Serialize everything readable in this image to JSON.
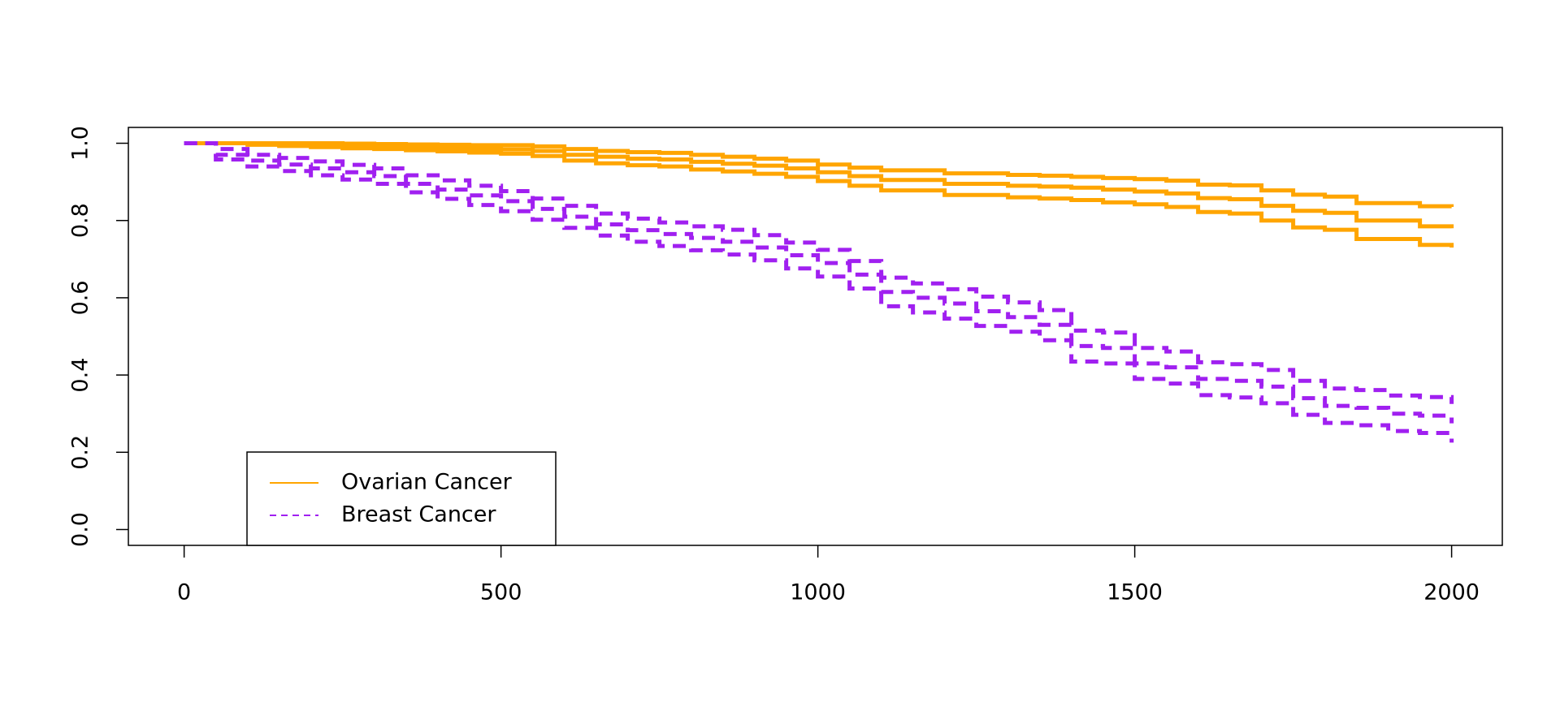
{
  "chart_data": {
    "type": "step",
    "x": [
      0,
      50,
      100,
      150,
      200,
      250,
      300,
      350,
      400,
      450,
      500,
      550,
      600,
      650,
      700,
      750,
      800,
      850,
      900,
      950,
      1000,
      1050,
      1100,
      1150,
      1200,
      1250,
      1300,
      1350,
      1400,
      1450,
      1500,
      1550,
      1600,
      1650,
      1700,
      1750,
      1800,
      1850,
      1900,
      1950,
      2000
    ],
    "series": [
      {
        "name": "Ovarian Cancer",
        "color": "#ffa500",
        "dash": false,
        "values": [
          1.0,
          1.0,
          1.0,
          0.998,
          0.996,
          0.994,
          0.992,
          0.99,
          0.988,
          0.986,
          0.984,
          0.98,
          0.97,
          0.965,
          0.96,
          0.958,
          0.952,
          0.947,
          0.942,
          0.935,
          0.925,
          0.915,
          0.905,
          0.905,
          0.895,
          0.895,
          0.89,
          0.888,
          0.885,
          0.88,
          0.875,
          0.87,
          0.858,
          0.855,
          0.838,
          0.825,
          0.82,
          0.8,
          0.8,
          0.785,
          0.78
        ],
        "upper": [
          1.0,
          1.0,
          1.0,
          1.0,
          1.0,
          0.999,
          0.998,
          0.997,
          0.996,
          0.995,
          0.995,
          0.992,
          0.985,
          0.98,
          0.977,
          0.975,
          0.97,
          0.965,
          0.96,
          0.955,
          0.945,
          0.937,
          0.93,
          0.93,
          0.922,
          0.922,
          0.918,
          0.916,
          0.913,
          0.91,
          0.907,
          0.903,
          0.893,
          0.891,
          0.878,
          0.867,
          0.862,
          0.845,
          0.845,
          0.837,
          0.835
        ],
        "lower": [
          1.0,
          1.0,
          0.996,
          0.993,
          0.99,
          0.987,
          0.985,
          0.982,
          0.979,
          0.976,
          0.973,
          0.967,
          0.955,
          0.948,
          0.943,
          0.94,
          0.932,
          0.927,
          0.921,
          0.913,
          0.902,
          0.89,
          0.878,
          0.878,
          0.866,
          0.866,
          0.86,
          0.857,
          0.853,
          0.847,
          0.842,
          0.835,
          0.822,
          0.818,
          0.8,
          0.782,
          0.776,
          0.752,
          0.752,
          0.737,
          0.73
        ]
      },
      {
        "name": "Breast Cancer",
        "color": "#a020f0",
        "dash": true,
        "values": [
          1.0,
          0.97,
          0.955,
          0.945,
          0.935,
          0.925,
          0.915,
          0.895,
          0.88,
          0.865,
          0.85,
          0.83,
          0.81,
          0.79,
          0.775,
          0.765,
          0.755,
          0.745,
          0.73,
          0.71,
          0.69,
          0.66,
          0.615,
          0.6,
          0.585,
          0.565,
          0.55,
          0.53,
          0.475,
          0.47,
          0.43,
          0.42,
          0.39,
          0.385,
          0.37,
          0.34,
          0.32,
          0.315,
          0.3,
          0.295,
          0.275
        ],
        "upper": [
          1.0,
          0.985,
          0.97,
          0.962,
          0.953,
          0.944,
          0.935,
          0.917,
          0.904,
          0.89,
          0.876,
          0.857,
          0.838,
          0.818,
          0.805,
          0.795,
          0.785,
          0.776,
          0.762,
          0.743,
          0.724,
          0.695,
          0.652,
          0.637,
          0.622,
          0.603,
          0.588,
          0.568,
          0.515,
          0.51,
          0.47,
          0.461,
          0.433,
          0.428,
          0.413,
          0.385,
          0.365,
          0.361,
          0.347,
          0.343,
          0.325
        ],
        "lower": [
          1.0,
          0.958,
          0.94,
          0.928,
          0.917,
          0.906,
          0.895,
          0.873,
          0.856,
          0.84,
          0.824,
          0.802,
          0.781,
          0.761,
          0.745,
          0.734,
          0.723,
          0.712,
          0.697,
          0.676,
          0.655,
          0.624,
          0.578,
          0.562,
          0.546,
          0.527,
          0.512,
          0.49,
          0.435,
          0.43,
          0.39,
          0.378,
          0.348,
          0.342,
          0.327,
          0.297,
          0.276,
          0.27,
          0.255,
          0.25,
          0.225
        ]
      }
    ],
    "xlim": [
      -88,
      2080
    ],
    "ylim": [
      -0.041,
      1.041
    ],
    "xticks": [
      0,
      500,
      1000,
      1500,
      2000
    ],
    "yticks": [
      {
        "value": 0,
        "label": "0.0"
      },
      {
        "value": 0.2,
        "label": "0.2"
      },
      {
        "value": 0.4,
        "label": "0.4"
      },
      {
        "value": 0.6,
        "label": "0.6"
      },
      {
        "value": 0.8,
        "label": "0.8"
      },
      {
        "value": 1,
        "label": "1.0"
      }
    ],
    "legend": "bottom-left"
  }
}
